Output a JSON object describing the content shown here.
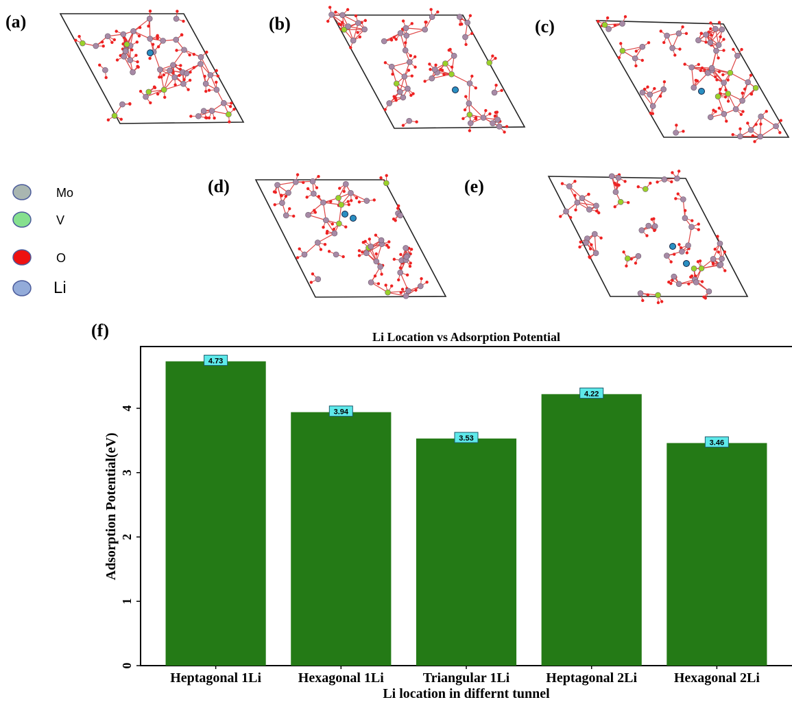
{
  "figure": {
    "panels": [
      "(a)",
      "(b)",
      "(c)",
      "(d)",
      "(e)",
      "(f)"
    ],
    "legend": [
      {
        "name": "Mo",
        "color": "#a9b6b1"
      },
      {
        "name": "V",
        "color": "#86e08f"
      },
      {
        "name": "O",
        "color": "#ee1111"
      },
      {
        "name": "Li",
        "color": "#93abd9"
      }
    ]
  },
  "chart_data": {
    "type": "bar",
    "title": "Li Location vs Adsorption Potential",
    "x_label": "Li location in differnt tunnel",
    "y_label": "Adsorption Potential(eV)",
    "categories": [
      "Heptagonal 1Li",
      "Hexagonal 1Li",
      "Triangular 1Li",
      "Heptagonal 2Li",
      "Hexagonal 2Li"
    ],
    "values": [
      4.73,
      3.94,
      3.53,
      4.22,
      3.46
    ],
    "color": "#247a16",
    "label_color": "#5ee9ea",
    "ylim": [
      0,
      4.96
    ],
    "yticks": [
      0,
      1,
      2,
      3,
      4
    ],
    "grid": false
  }
}
